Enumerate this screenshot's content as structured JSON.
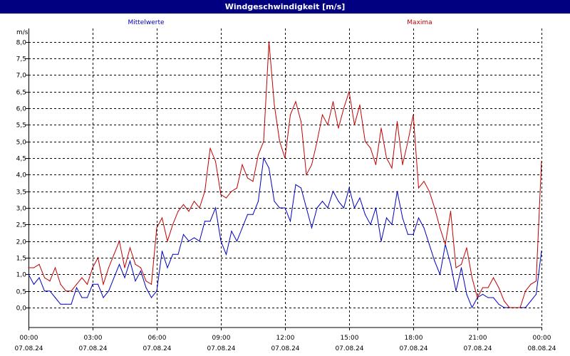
{
  "title": "Windgeschwindigkeit [m/s]",
  "chart_data": {
    "type": "line",
    "title": "Windgeschwindigkeit [m/s]",
    "y_unit": "m/s",
    "ylim": [
      -0.6,
      8.4
    ],
    "y_ticks": [
      "0,0",
      "0,5",
      "1,0",
      "1,5",
      "2,0",
      "2,5",
      "3,0",
      "3,5",
      "4,0",
      "4,5",
      "5,0",
      "5,5",
      "6,0",
      "6,5",
      "7,0",
      "7,5",
      "8,0"
    ],
    "xlim_hours": [
      0,
      24
    ],
    "x_ticks": [
      {
        "time": "00:00",
        "date": "07.08.24"
      },
      {
        "time": "03:00",
        "date": "07.08.24"
      },
      {
        "time": "06:00",
        "date": "07.08.24"
      },
      {
        "time": "09:00",
        "date": "07.08.24"
      },
      {
        "time": "12:00",
        "date": "07.08.24"
      },
      {
        "time": "15:00",
        "date": "07.08.24"
      },
      {
        "time": "18:00",
        "date": "07.08.24"
      },
      {
        "time": "21:00",
        "date": "07.08.24"
      },
      {
        "time": "00:00",
        "date": "08.08.24"
      }
    ],
    "grid": true,
    "series": [
      {
        "name": "Mittelwerte",
        "color": "#0000c0",
        "x": [
          0,
          0.25,
          0.5,
          0.75,
          1,
          1.25,
          1.5,
          1.75,
          2,
          2.25,
          2.5,
          2.75,
          3,
          3.25,
          3.5,
          3.75,
          4,
          4.25,
          4.5,
          4.75,
          5,
          5.25,
          5.5,
          5.75,
          6,
          6.25,
          6.5,
          6.75,
          7,
          7.25,
          7.5,
          7.75,
          8,
          8.25,
          8.5,
          8.75,
          9,
          9.25,
          9.5,
          9.75,
          10,
          10.25,
          10.5,
          10.75,
          11,
          11.25,
          11.5,
          11.75,
          12,
          12.25,
          12.5,
          12.75,
          13,
          13.25,
          13.5,
          13.75,
          14,
          14.25,
          14.5,
          14.75,
          15,
          15.25,
          15.5,
          15.75,
          16,
          16.25,
          16.5,
          16.75,
          17,
          17.25,
          17.5,
          17.75,
          18,
          18.25,
          18.5,
          18.75,
          19,
          19.25,
          19.5,
          19.75,
          20,
          20.25,
          20.5,
          20.75,
          21,
          21.25,
          21.5,
          21.75,
          22,
          22.25,
          22.5,
          22.75,
          23,
          23.25,
          23.5,
          23.75,
          24
        ],
        "values": [
          1.0,
          0.7,
          0.9,
          0.5,
          0.5,
          0.3,
          0.1,
          0.1,
          0.1,
          0.6,
          0.3,
          0.3,
          0.7,
          0.7,
          0.3,
          0.5,
          0.9,
          1.3,
          0.9,
          1.4,
          0.8,
          1.1,
          0.6,
          0.3,
          0.5,
          1.7,
          1.2,
          1.6,
          1.6,
          2.2,
          2.0,
          2.1,
          2.0,
          2.6,
          2.6,
          3.0,
          2.0,
          1.6,
          2.3,
          2.0,
          2.4,
          2.8,
          2.8,
          3.2,
          4.5,
          4.2,
          3.2,
          3.0,
          3.0,
          2.6,
          3.7,
          3.6,
          3.0,
          2.4,
          3.0,
          3.2,
          3.0,
          3.5,
          3.2,
          3.0,
          3.6,
          3.0,
          3.3,
          2.8,
          2.5,
          3.0,
          2.0,
          2.7,
          2.5,
          3.5,
          2.7,
          2.2,
          2.2,
          2.7,
          2.4,
          1.9,
          1.4,
          1.0,
          1.9,
          1.3,
          0.5,
          1.2,
          0.4,
          0.0,
          0.3,
          0.4,
          0.3,
          0.3,
          0.1,
          0.0,
          0.0,
          0.0,
          0.0,
          0.0,
          0.2,
          0.4,
          1.7
        ],
        "label_x_hour": 5.5
      },
      {
        "name": "Maxima",
        "color": "#c00000",
        "x": [
          0,
          0.25,
          0.5,
          0.75,
          1,
          1.25,
          1.5,
          1.75,
          2,
          2.25,
          2.5,
          2.75,
          3,
          3.25,
          3.5,
          3.75,
          4,
          4.25,
          4.5,
          4.75,
          5,
          5.25,
          5.5,
          5.75,
          6,
          6.25,
          6.5,
          6.75,
          7,
          7.25,
          7.5,
          7.75,
          8,
          8.25,
          8.5,
          8.75,
          9,
          9.25,
          9.5,
          9.75,
          10,
          10.25,
          10.5,
          10.75,
          11,
          11.25,
          11.5,
          11.75,
          12,
          12.25,
          12.5,
          12.75,
          13,
          13.25,
          13.5,
          13.75,
          14,
          14.25,
          14.5,
          14.75,
          15,
          15.25,
          15.5,
          15.75,
          16,
          16.25,
          16.5,
          16.75,
          17,
          17.25,
          17.5,
          17.75,
          18,
          18.25,
          18.5,
          18.75,
          19,
          19.25,
          19.5,
          19.75,
          20,
          20.25,
          20.5,
          20.75,
          21,
          21.25,
          21.5,
          21.75,
          22,
          22.25,
          22.5,
          22.75,
          23,
          23.25,
          23.5,
          23.75,
          24
        ],
        "values": [
          1.2,
          1.2,
          1.3,
          0.9,
          0.8,
          1.2,
          0.7,
          0.5,
          0.5,
          0.7,
          0.9,
          0.7,
          1.2,
          1.5,
          0.7,
          1.2,
          1.6,
          2.0,
          1.2,
          1.8,
          1.3,
          1.2,
          0.8,
          0.7,
          2.4,
          2.7,
          2.0,
          2.5,
          2.9,
          3.1,
          2.9,
          3.2,
          3.0,
          3.5,
          4.8,
          4.4,
          3.4,
          3.3,
          3.5,
          3.6,
          4.3,
          3.9,
          3.8,
          4.6,
          5.0,
          8.0,
          6.1,
          5.0,
          4.5,
          5.8,
          6.2,
          5.6,
          4.0,
          4.3,
          5.0,
          5.8,
          5.5,
          6.2,
          5.4,
          6.0,
          6.5,
          5.5,
          6.1,
          5.0,
          4.8,
          4.3,
          5.4,
          4.5,
          4.2,
          5.6,
          4.3,
          5.0,
          5.8,
          3.6,
          3.8,
          3.5,
          3.0,
          2.4,
          1.9,
          2.9,
          1.2,
          1.3,
          1.8,
          0.9,
          0.3,
          0.6,
          0.6,
          0.9,
          0.6,
          0.2,
          0.0,
          0.0,
          0.0,
          0.5,
          0.7,
          0.8,
          4.4
        ],
        "label_x_hour": 18.3
      }
    ]
  }
}
